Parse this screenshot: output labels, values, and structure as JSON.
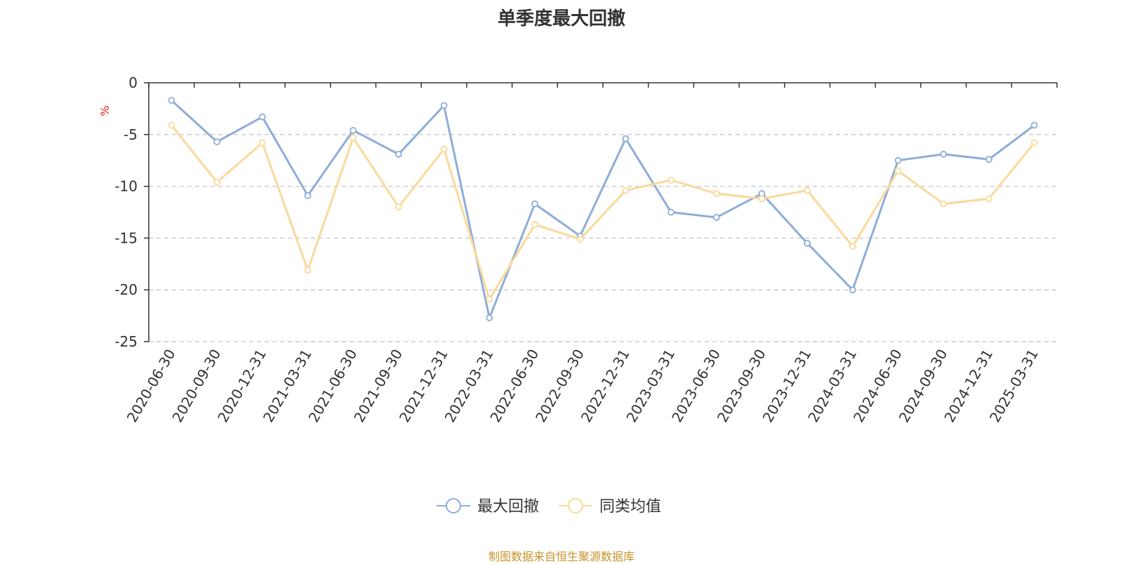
{
  "page": {
    "source_note": "制图数据来自恒生聚源数据库"
  },
  "chart_data": {
    "type": "line",
    "title": "单季度最大回撤",
    "ylabel": "%",
    "xlabel": "",
    "ylim": [
      -25,
      0
    ],
    "yticks": [
      0,
      -5,
      -10,
      -15,
      -20,
      -25
    ],
    "grid": true,
    "legend_position": "bottom-center",
    "categories": [
      "2020-06-30",
      "2020-09-30",
      "2020-12-31",
      "2021-03-31",
      "2021-06-30",
      "2021-09-30",
      "2021-12-31",
      "2022-03-31",
      "2022-06-30",
      "2022-09-30",
      "2022-12-31",
      "2023-03-31",
      "2023-06-30",
      "2023-09-30",
      "2023-12-31",
      "2024-03-31",
      "2024-06-30",
      "2024-09-30",
      "2024-12-31",
      "2025-03-31"
    ],
    "series": [
      {
        "name": "最大回撤",
        "color": "#8eadd8",
        "values": [
          -1.7,
          -5.7,
          -3.3,
          -10.9,
          -4.6,
          -6.9,
          -2.2,
          -22.7,
          -11.7,
          -14.8,
          -5.4,
          -12.5,
          -13.0,
          -10.7,
          -15.5,
          -20.0,
          -7.5,
          -6.9,
          -7.4,
          -4.1
        ]
      },
      {
        "name": "同类均值",
        "color": "#fbd99a",
        "values": [
          -4.1,
          -9.6,
          -5.8,
          -18.1,
          -5.3,
          -12.0,
          -6.4,
          -20.9,
          -13.7,
          -15.1,
          -10.4,
          -9.4,
          -10.7,
          -11.2,
          -10.4,
          -15.8,
          -8.5,
          -11.7,
          -11.2,
          -5.8
        ]
      }
    ]
  }
}
